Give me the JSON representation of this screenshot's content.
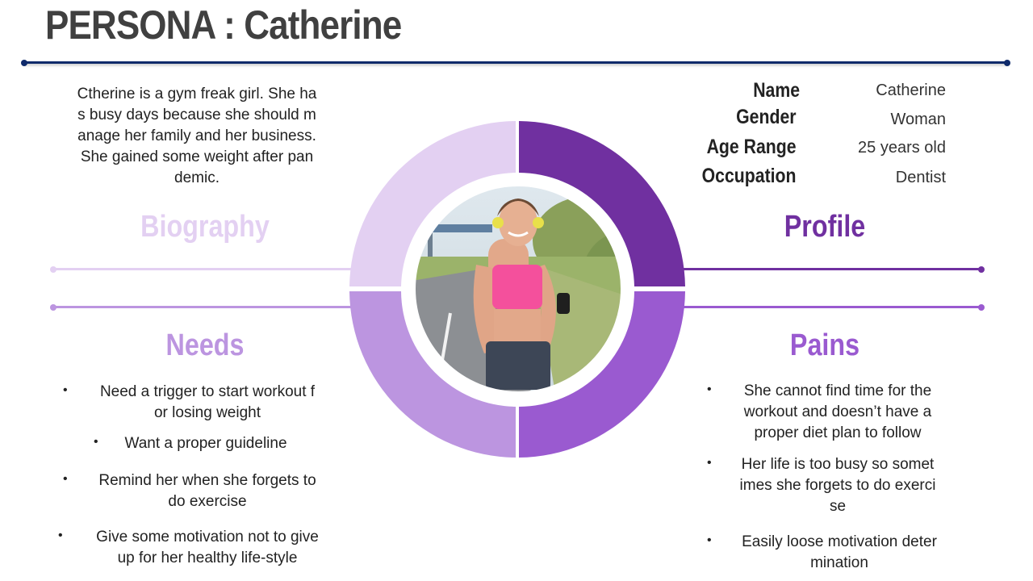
{
  "header": {
    "title": "PERSONA : Catherine"
  },
  "colors": {
    "navy": "#0f2a6b",
    "biography": "#e3d0f2",
    "profile": "#7030a0",
    "needs": "#bc95e0",
    "pains": "#9a5ad0"
  },
  "biography": {
    "heading": "Biography",
    "lines": [
      "Ctherine is a gym freak girl. She ha",
      "s busy days because she should m",
      "anage her family and her business.",
      "She gained some weight after pan",
      "demic."
    ]
  },
  "profile": {
    "heading": "Profile",
    "fields": [
      {
        "label": "Name",
        "value": "Catherine"
      },
      {
        "label": "Gender",
        "value": "Woman"
      },
      {
        "label": "Age Range",
        "value": "25 years old"
      },
      {
        "label": "Occupation",
        "value": "Dentist"
      }
    ]
  },
  "needs": {
    "heading": "Needs",
    "items": [
      {
        "lines": [
          "Need a trigger to start workout f",
          "or losing weight"
        ]
      },
      {
        "lines": [
          "Want a proper guideline"
        ]
      },
      {
        "lines": [
          "Remind her when she forgets to",
          "do exercise"
        ]
      },
      {
        "lines": [
          "Give some motivation not to give",
          "up for her healthy life-style"
        ]
      }
    ]
  },
  "pains": {
    "heading": "Pains",
    "items": [
      {
        "lines": [
          "She cannot find time for the",
          "workout and doesn’t have a",
          "proper diet plan to follow"
        ]
      },
      {
        "lines": [
          "Her life is too busy so somet",
          "imes she forgets to do exerci",
          "se"
        ]
      },
      {
        "lines": [
          "Easily loose motivation deter",
          "mination"
        ]
      }
    ]
  },
  "photo": {
    "description_icon": "runner-woman-photo"
  }
}
